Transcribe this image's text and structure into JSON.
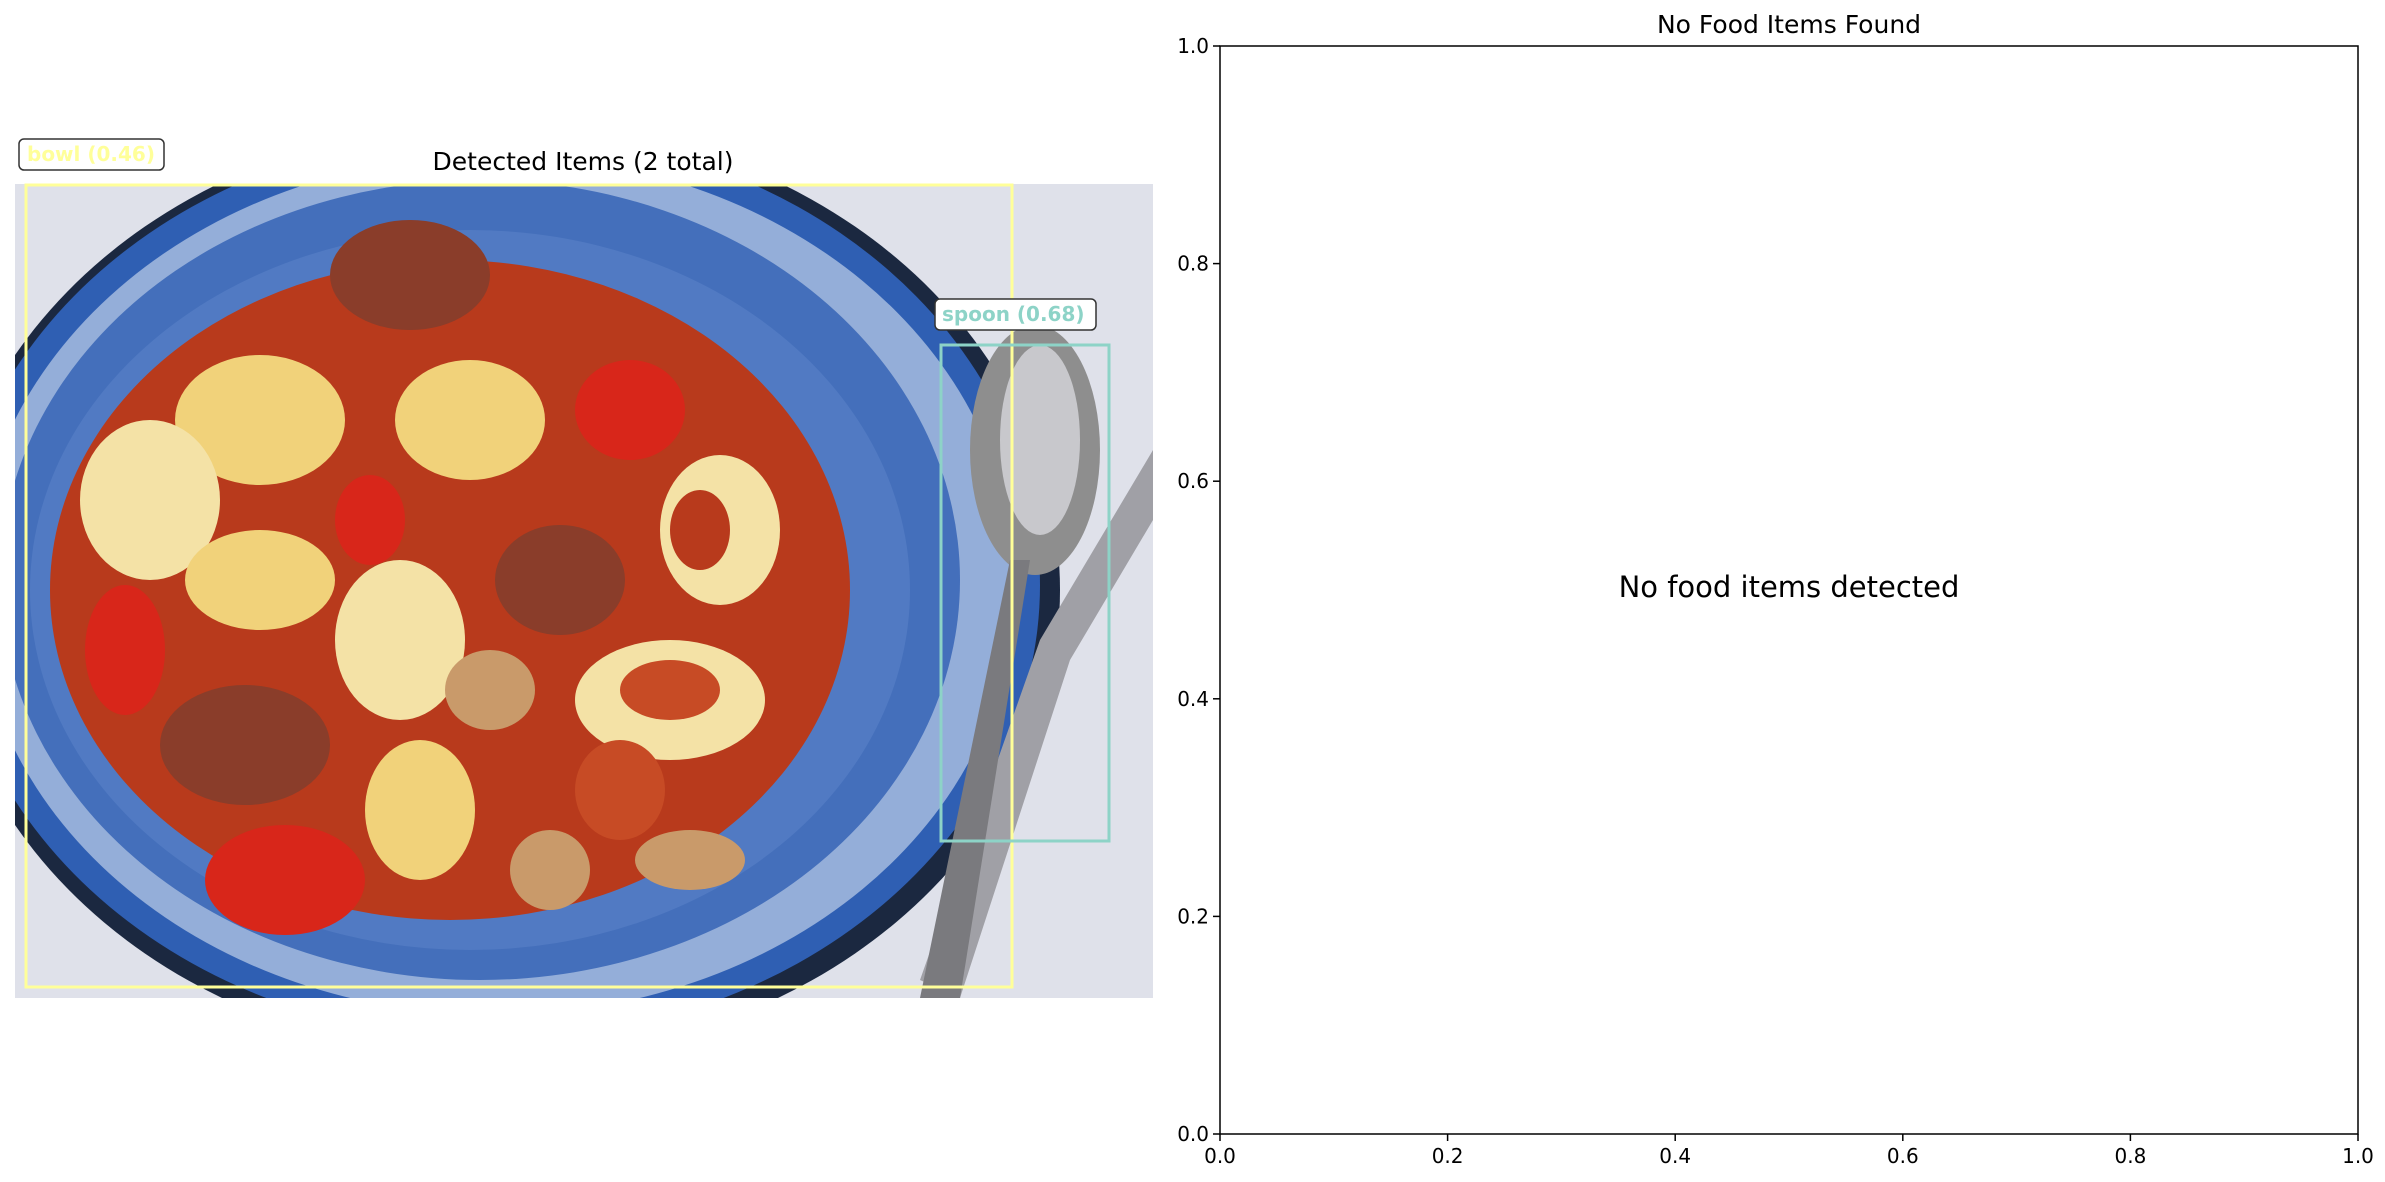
{
  "left_panel": {
    "title": "Detected Items (2 total)",
    "detections": [
      {
        "label": "bowl (0.46)",
        "color": "#ffff99"
      },
      {
        "label": "spoon (0.68)",
        "color": "#8dd3c7"
      }
    ]
  },
  "right_panel": {
    "title": "No Food Items Found",
    "message": "No food items detected"
  },
  "colors": {
    "background": "#ffffff",
    "axis": "#000000",
    "bowl_box": "#ffff99",
    "spoon_box": "#8dd3c7",
    "plate_blue": "#2f5fb3",
    "plate_white": "#e8eef8",
    "sauce_red": "#b83a1c",
    "pasta": "#f1d27a",
    "pepper_red": "#d8261a",
    "meat": "#8a3d2a",
    "mushroom": "#c99a6a",
    "spoon_metal": "#8e8e8e",
    "tablecloth": "#dfe1ea"
  },
  "chart_data": [
    {
      "type": "image",
      "title": "Detected Items (2 total)",
      "annotations": [
        "bowl (0.46)",
        "spoon (0.68)"
      ]
    },
    {
      "type": "scatter",
      "title": "No Food Items Found",
      "xlabel": "",
      "ylabel": "",
      "xlim": [
        0.0,
        1.0
      ],
      "ylim": [
        0.0,
        1.0
      ],
      "xticks": [
        "0.0",
        "0.2",
        "0.4",
        "0.6",
        "0.8",
        "1.0"
      ],
      "yticks": [
        "0.0",
        "0.2",
        "0.4",
        "0.6",
        "0.8",
        "1.0"
      ],
      "series": [],
      "annotations": [
        "No food items detected"
      ],
      "grid": false
    }
  ]
}
